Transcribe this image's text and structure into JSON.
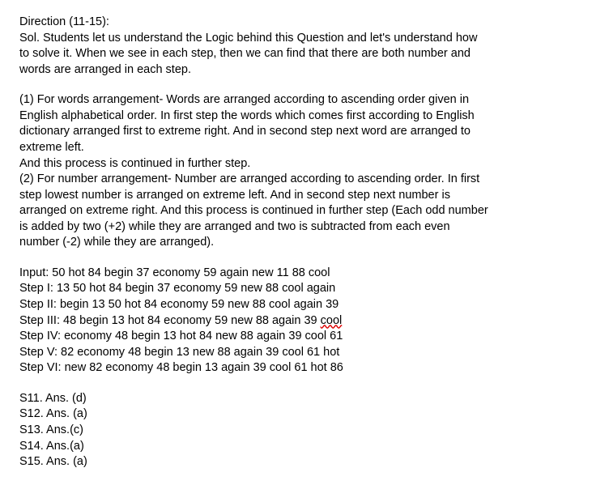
{
  "direction_heading": "Direction (11-15):",
  "intro": {
    "l1": "Sol. Students let us understand the Logic behind this Question and let's understand how",
    "l2": "to solve it. When we see in each step, then we can find that there are both number and",
    "l3": "words are arranged in each step."
  },
  "rule1": {
    "l1": "(1) For words arrangement- Words are arranged according to ascending order given in",
    "l2": "English alphabetical order. In first step the words which comes first according to English",
    "l3": "dictionary arranged first to extreme right. And in second step next word are arranged to",
    "l4": "extreme left.",
    "l5": "And this process is continued in further step."
  },
  "rule2": {
    "l1": "(2) For number arrangement- Number are arranged according to ascending order. In first",
    "l2": "step lowest number is arranged on extreme left. And in second step next number is",
    "l3": "arranged on extreme right. And this process is continued in further step (Each odd number",
    "l4": "is added by two (+2) while they are arranged and two is subtracted from each even",
    "l5": "number (-2) while they are arranged)."
  },
  "steps": {
    "input": "Input: 50 hot 84 begin 37 economy 59 again new 11 88 cool",
    "s1": "Step I: 13 50 hot 84 begin 37 economy 59 new 88 cool again",
    "s2": "Step II: begin 13 50 hot 84 economy 59 new 88 cool again 39",
    "s3a": "Step III: 48 begin 13 hot 84 economy 59 new 88 again 39 ",
    "s3b": "cool",
    "s4": "Step IV: economy 48 begin 13 hot 84 new 88 again 39 cool 61",
    "s5": "Step V: 82 economy 48 begin 13 new 88 again 39 cool 61 hot",
    "s6": "Step VI: new 82 economy 48 begin 13 again 39 cool 61 hot 86"
  },
  "answers": {
    "a11": "S11. Ans. (d)",
    "a12": "S12. Ans. (a)",
    "a13": "S13. Ans.(c)",
    "a14": "S14. Ans.(a)",
    "a15": "S15. Ans. (a)"
  }
}
